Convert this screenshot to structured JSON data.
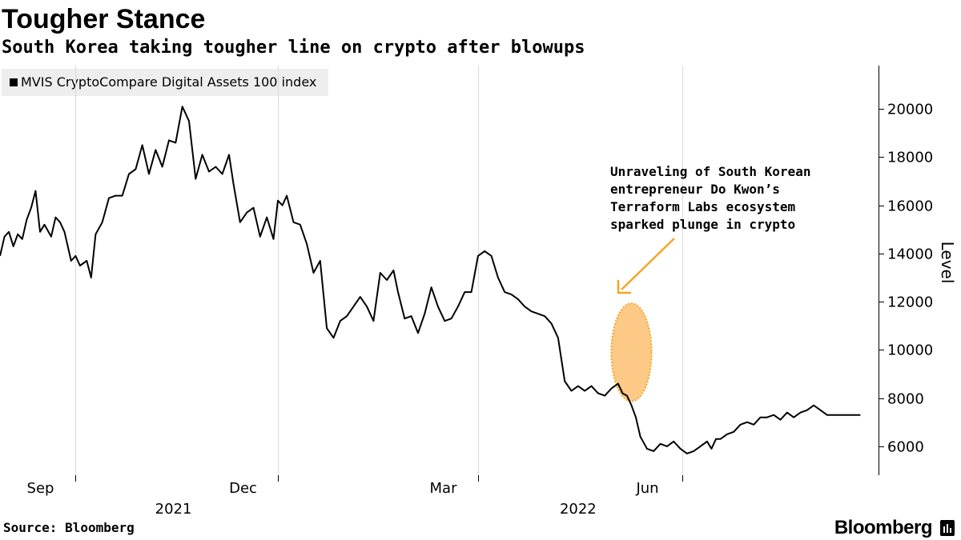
{
  "header": {
    "title": "Tougher Stance",
    "subtitle": "South Korea taking tougher line on crypto after blowups"
  },
  "footer": {
    "source": "Source: Bloomberg",
    "brand": "Bloomberg",
    "brand_icon": "bloomberg-bars-icon"
  },
  "colors": {
    "line": "#000000",
    "annotation": "#f5a623",
    "highlight_fill": "#fbbf72",
    "legend_bg": "#eeeeee",
    "grid": "#d9d9d9"
  },
  "chart_data": {
    "type": "line",
    "title": "Tougher Stance",
    "subtitle": "South Korea taking tougher line on crypto after blowups",
    "legend": "MVIS CryptoCompare Digital Assets 100 index",
    "legend_position": "top-left",
    "ylabel": "Level",
    "y_axis_side": "right",
    "ylim": [
      4800,
      21800
    ],
    "yticks": [
      6000,
      8000,
      10000,
      12000,
      14000,
      16000,
      18000,
      20000
    ],
    "ytick_labels": [
      "6000",
      "8000",
      "10000",
      "12000",
      "14000",
      "16000",
      "18000",
      "20000"
    ],
    "xlim": [
      "2021-07-29",
      "2022-08-22"
    ],
    "xticks": [
      {
        "date": "2021-09-01",
        "label": "Sep"
      },
      {
        "date": "2021-12-01",
        "label": "Dec"
      },
      {
        "date": "2022-03-01",
        "label": "Mar"
      },
      {
        "date": "2022-06-01",
        "label": "Jun"
      }
    ],
    "year_labels": [
      {
        "date": "2021-10-15",
        "label": "2021"
      },
      {
        "date": "2022-04-15",
        "label": "2022"
      }
    ],
    "grid": "vertical",
    "x": [
      "2021-07-29",
      "2021-07-31",
      "2021-08-02",
      "2021-08-04",
      "2021-08-06",
      "2021-08-08",
      "2021-08-10",
      "2021-08-12",
      "2021-08-14",
      "2021-08-16",
      "2021-08-18",
      "2021-08-21",
      "2021-08-23",
      "2021-08-25",
      "2021-08-27",
      "2021-08-30",
      "2021-09-01",
      "2021-09-03",
      "2021-09-06",
      "2021-09-08",
      "2021-09-10",
      "2021-09-13",
      "2021-09-16",
      "2021-09-19",
      "2021-09-22",
      "2021-09-25",
      "2021-09-28",
      "2021-10-01",
      "2021-10-04",
      "2021-10-07",
      "2021-10-10",
      "2021-10-13",
      "2021-10-16",
      "2021-10-19",
      "2021-10-22",
      "2021-10-25",
      "2021-10-28",
      "2021-10-31",
      "2021-11-03",
      "2021-11-06",
      "2021-11-09",
      "2021-11-11",
      "2021-11-14",
      "2021-11-17",
      "2021-11-20",
      "2021-11-23",
      "2021-11-26",
      "2021-11-29",
      "2021-12-01",
      "2021-12-03",
      "2021-12-05",
      "2021-12-08",
      "2021-12-11",
      "2021-12-14",
      "2021-12-17",
      "2021-12-20",
      "2021-12-23",
      "2021-12-26",
      "2021-12-29",
      "2022-01-01",
      "2022-01-04",
      "2022-01-07",
      "2022-01-10",
      "2022-01-13",
      "2022-01-16",
      "2022-01-19",
      "2022-01-22",
      "2022-01-24",
      "2022-01-27",
      "2022-01-30",
      "2022-02-02",
      "2022-02-05",
      "2022-02-08",
      "2022-02-11",
      "2022-02-14",
      "2022-02-17",
      "2022-02-20",
      "2022-02-23",
      "2022-02-26",
      "2022-03-01",
      "2022-03-04",
      "2022-03-07",
      "2022-03-10",
      "2022-03-13",
      "2022-03-16",
      "2022-03-19",
      "2022-03-22",
      "2022-03-25",
      "2022-03-28",
      "2022-03-31",
      "2022-04-03",
      "2022-04-06",
      "2022-04-09",
      "2022-04-12",
      "2022-04-15",
      "2022-04-18",
      "2022-04-21",
      "2022-04-24",
      "2022-04-27",
      "2022-04-30",
      "2022-05-03",
      "2022-05-05",
      "2022-05-07",
      "2022-05-09",
      "2022-05-11",
      "2022-05-13",
      "2022-05-16",
      "2022-05-19",
      "2022-05-22",
      "2022-05-25",
      "2022-05-28",
      "2022-05-31",
      "2022-06-03",
      "2022-06-06",
      "2022-06-09",
      "2022-06-12",
      "2022-06-14",
      "2022-06-16",
      "2022-06-18",
      "2022-06-21",
      "2022-06-24",
      "2022-06-27",
      "2022-06-30",
      "2022-07-03",
      "2022-07-06",
      "2022-07-09",
      "2022-07-12",
      "2022-07-15",
      "2022-07-18",
      "2022-07-21",
      "2022-07-24",
      "2022-07-27",
      "2022-07-30",
      "2022-08-02",
      "2022-08-05",
      "2022-08-08",
      "2022-08-11",
      "2022-08-14",
      "2022-08-17",
      "2022-08-20"
    ],
    "values": [
      13900,
      14700,
      14900,
      14300,
      14800,
      14600,
      15400,
      15900,
      16600,
      14900,
      15200,
      14700,
      15500,
      15300,
      14900,
      13700,
      13900,
      13500,
      13700,
      13000,
      14800,
      15300,
      16300,
      16400,
      16400,
      17300,
      17500,
      18500,
      17300,
      18300,
      17600,
      18700,
      18600,
      20100,
      19500,
      17100,
      18100,
      17400,
      17600,
      17300,
      18100,
      16900,
      15300,
      15700,
      15900,
      14700,
      15500,
      14600,
      16200,
      16000,
      16400,
      15300,
      15200,
      14400,
      13200,
      13700,
      10900,
      10500,
      11200,
      11400,
      11800,
      12200,
      11800,
      11200,
      13200,
      12900,
      13300,
      12400,
      11300,
      11400,
      10700,
      11500,
      12600,
      11800,
      11200,
      11300,
      11800,
      12400,
      12400,
      13900,
      14100,
      13900,
      13000,
      12400,
      12300,
      12100,
      11800,
      11600,
      11500,
      11400,
      11100,
      10500,
      8700,
      8300,
      8500,
      8300,
      8500,
      8200,
      8100,
      8400,
      8600,
      8200,
      8100,
      7700,
      7200,
      6400,
      5900,
      5800,
      6100,
      6000,
      6200,
      5900,
      5700,
      5800,
      6000,
      6200,
      5900,
      6300,
      6300,
      6500,
      6600,
      6900,
      7000,
      6900,
      7200,
      7200,
      7300,
      7100,
      7400,
      7200,
      7400,
      7500,
      7700,
      7500,
      7300,
      7300,
      7300,
      7300,
      7300,
      7300
    ]
  },
  "annotation": {
    "text_lines": [
      "Unraveling of South Korean",
      "entrepreneur Do Kwon’s",
      "Terraform Labs ecosystem",
      "sparked plunge in crypto"
    ],
    "highlight_start": "2022-05-05",
    "highlight_end": "2022-05-13",
    "highlight_ylim": [
      8000,
      11800
    ]
  }
}
